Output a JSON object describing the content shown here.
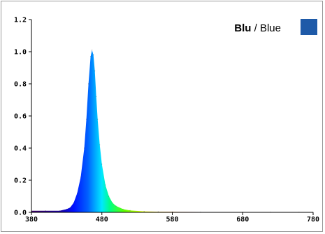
{
  "chart_data": {
    "type": "area",
    "title": "",
    "xlabel": "",
    "ylabel": "",
    "xlim": [
      380,
      780
    ],
    "ylim": [
      0,
      1.2
    ],
    "x_ticks": [
      "380",
      "480",
      "580",
      "680",
      "780"
    ],
    "y_ticks": [
      "0.0",
      "0.2",
      "0.4",
      "0.6",
      "0.8",
      "1.0",
      "1.2"
    ],
    "grid": false,
    "legend_position": "top-right",
    "legend": {
      "bold_label": "Blu",
      "separator": " / ",
      "label": "Blue",
      "color": "#1e5aa8"
    },
    "series": [
      {
        "name": "Blu / Blue",
        "x": [
          380,
          400,
          420,
          430,
          435,
          440,
          445,
          450,
          455,
          458,
          461,
          464,
          466,
          468,
          470,
          472,
          474,
          477,
          480,
          485,
          490,
          495,
          500,
          510,
          520,
          540,
          560,
          580,
          620,
          680,
          720,
          760,
          780
        ],
        "y": [
          0.01,
          0.01,
          0.01,
          0.02,
          0.03,
          0.06,
          0.12,
          0.22,
          0.4,
          0.58,
          0.8,
          0.97,
          1.01,
          0.98,
          0.88,
          0.72,
          0.58,
          0.42,
          0.3,
          0.17,
          0.1,
          0.06,
          0.04,
          0.02,
          0.012,
          0.006,
          0.004,
          0.003,
          0.002,
          0.002,
          0.002,
          0.001,
          0.001
        ]
      }
    ]
  }
}
